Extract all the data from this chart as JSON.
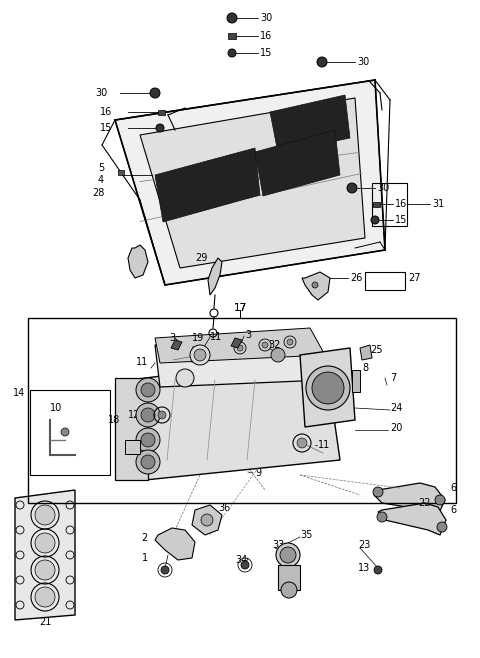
{
  "bg_color": "#ffffff",
  "line_color": "#000000",
  "fig_width": 4.8,
  "fig_height": 6.58,
  "dpi": 100,
  "fs": 7.0
}
